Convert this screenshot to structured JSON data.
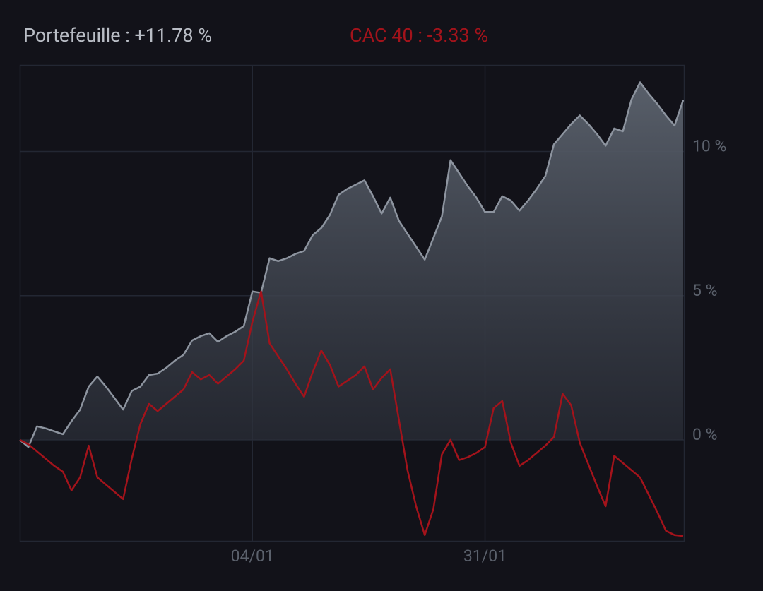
{
  "chart_data": {
    "type": "line",
    "categories": [
      null,
      null,
      null,
      null,
      null,
      null,
      null,
      null,
      null,
      null,
      null,
      null,
      null,
      null,
      null,
      null,
      null,
      null,
      null,
      null,
      null,
      null,
      null,
      null,
      null,
      null,
      null,
      "04/01",
      null,
      null,
      null,
      null,
      null,
      null,
      null,
      null,
      null,
      null,
      null,
      null,
      null,
      null,
      null,
      null,
      null,
      null,
      null,
      null,
      null,
      null,
      null,
      null,
      null,
      null,
      "31/01",
      null,
      null,
      null,
      null,
      null,
      null,
      null,
      null,
      null,
      null,
      null,
      null,
      null,
      null,
      null,
      null,
      null,
      null,
      null,
      null,
      null,
      null,
      null
    ],
    "series": [
      {
        "name": "Portefeuille : +11.78 %",
        "color": "#8d949f",
        "fill": true,
        "values": [
          0,
          -0.25,
          0.47,
          0.4,
          0.3,
          0.2,
          0.65,
          1.05,
          1.85,
          2.2,
          1.85,
          1.45,
          1.05,
          1.7,
          1.85,
          2.25,
          2.3,
          2.5,
          2.75,
          2.95,
          3.45,
          3.6,
          3.7,
          3.4,
          3.6,
          3.75,
          3.95,
          5.15,
          5.1,
          6.3,
          6.2,
          6.3,
          6.45,
          6.55,
          7.1,
          7.35,
          7.8,
          8.5,
          8.7,
          8.85,
          9.0,
          8.45,
          7.85,
          8.4,
          7.6,
          7.15,
          6.7,
          6.25,
          7.0,
          7.75,
          9.7,
          9.25,
          8.8,
          8.4,
          7.9,
          7.9,
          8.45,
          8.3,
          7.95,
          8.3,
          8.7,
          9.15,
          10.25,
          10.6,
          10.95,
          11.25,
          10.95,
          10.6,
          10.2,
          10.8,
          10.7,
          11.8,
          12.4,
          12.0,
          11.65,
          11.25,
          10.9,
          11.78
        ]
      },
      {
        "name": "CAC 40 : -3.33 %",
        "color": "#a3131b",
        "fill": false,
        "values": [
          0,
          -0.15,
          -0.4,
          -0.65,
          -0.9,
          -1.1,
          -1.75,
          -1.3,
          -0.2,
          -1.3,
          -1.55,
          -1.8,
          -2.05,
          -0.65,
          0.55,
          1.25,
          1.0,
          1.25,
          1.5,
          1.75,
          2.35,
          2.1,
          2.25,
          1.95,
          2.2,
          2.45,
          2.75,
          4.1,
          5.15,
          3.35,
          2.9,
          2.45,
          1.95,
          1.5,
          2.35,
          3.1,
          2.6,
          1.85,
          2.05,
          2.25,
          2.55,
          1.75,
          2.15,
          2.45,
          0.7,
          -1.05,
          -2.3,
          -3.3,
          -2.4,
          -0.5,
          0.0,
          -0.7,
          -0.6,
          -0.45,
          -0.25,
          1.1,
          1.35,
          -0.1,
          -0.9,
          -0.7,
          -0.45,
          -0.2,
          0.1,
          1.6,
          1.2,
          -0.1,
          -0.85,
          -1.6,
          -2.3,
          -0.55,
          -0.8,
          -1.05,
          -1.3,
          -1.9,
          -2.5,
          -3.15,
          -3.3,
          -3.33
        ]
      }
    ],
    "ylim": [
      -3.5,
      13
    ],
    "yticks": [
      {
        "value": 0,
        "label": "0 %"
      },
      {
        "value": 5,
        "label": "5 %"
      },
      {
        "value": 10,
        "label": "10 %"
      }
    ],
    "grid": true
  }
}
